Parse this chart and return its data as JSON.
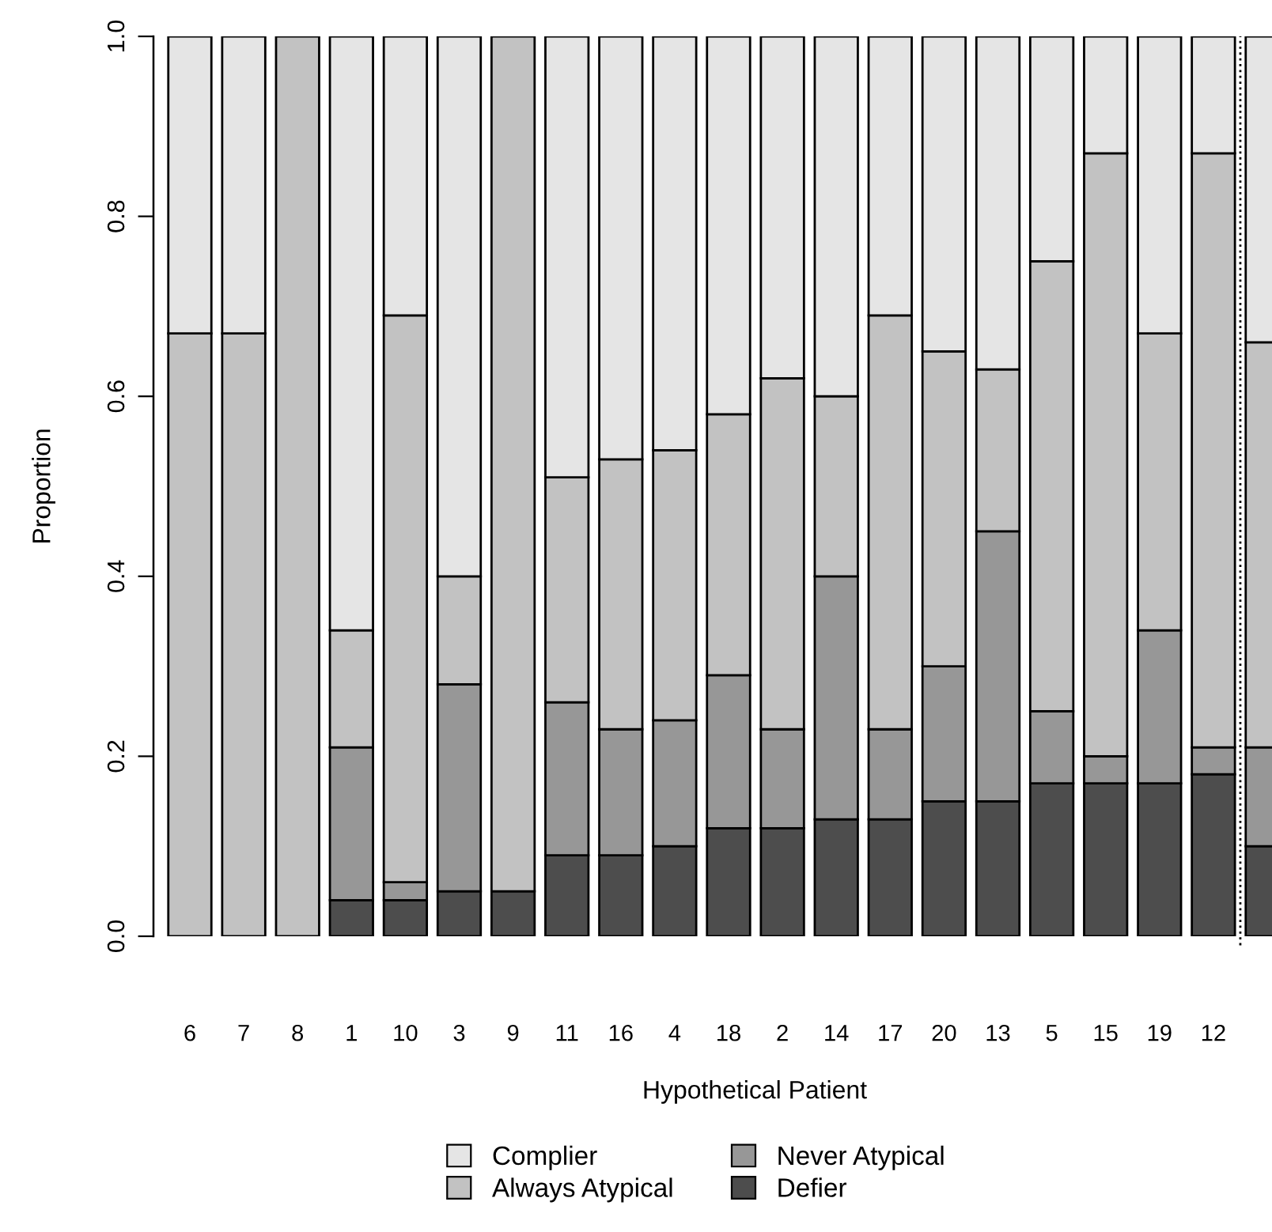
{
  "chart_data": {
    "type": "bar",
    "stacked": true,
    "xlabel": "Hypothetical Patient",
    "ylabel": "Proportion",
    "categories": [
      "6",
      "7",
      "8",
      "1",
      "10",
      "3",
      "9",
      "11",
      "16",
      "4",
      "18",
      "2",
      "14",
      "17",
      "20",
      "13",
      "5",
      "15",
      "19",
      "12",
      null
    ],
    "series": [
      {
        "name": "Defier",
        "color": "#4d4d4d",
        "values": [
          null,
          null,
          null,
          0.04,
          0.04,
          0.05,
          0.05,
          0.09,
          0.09,
          0.1,
          0.12,
          0.12,
          0.13,
          0.13,
          0.15,
          0.15,
          0.17,
          0.17,
          0.17,
          0.18,
          0.1
        ]
      },
      {
        "name": "Never Atypical",
        "color": "#979797",
        "values": [
          null,
          null,
          null,
          0.17,
          0.02,
          0.23,
          null,
          0.17,
          0.14,
          0.14,
          0.17,
          0.11,
          0.27,
          0.1,
          0.15,
          0.3,
          0.08,
          0.03,
          0.17,
          0.03,
          0.11
        ]
      },
      {
        "name": "Always Atypical",
        "color": "#c2c2c2",
        "values": [
          0.67,
          0.67,
          1,
          0.13,
          0.63,
          0.12,
          0.95,
          0.25,
          0.3,
          0.3,
          0.29,
          0.39,
          0.2,
          0.46,
          0.35,
          0.18,
          0.5,
          0.67,
          0.33,
          0.66,
          0.45
        ]
      },
      {
        "name": "Complier",
        "color": "#e5e5e5",
        "values": [
          0.33,
          0.33,
          null,
          0.66,
          0.31,
          0.6,
          null,
          0.49,
          0.47,
          0.46,
          0.42,
          0.38,
          0.4,
          0.31,
          0.35,
          0.37,
          0.25,
          0.13,
          0.33,
          0.13,
          0.34
        ]
      }
    ],
    "ylim": [
      0,
      1
    ],
    "yticks": [
      {
        "value": 0,
        "label": "0.0"
      },
      0.2,
      0.4,
      0.6,
      0.8,
      {
        "value": 1,
        "label": "1.0"
      }
    ],
    "grid": false,
    "legend": "bottom"
  }
}
